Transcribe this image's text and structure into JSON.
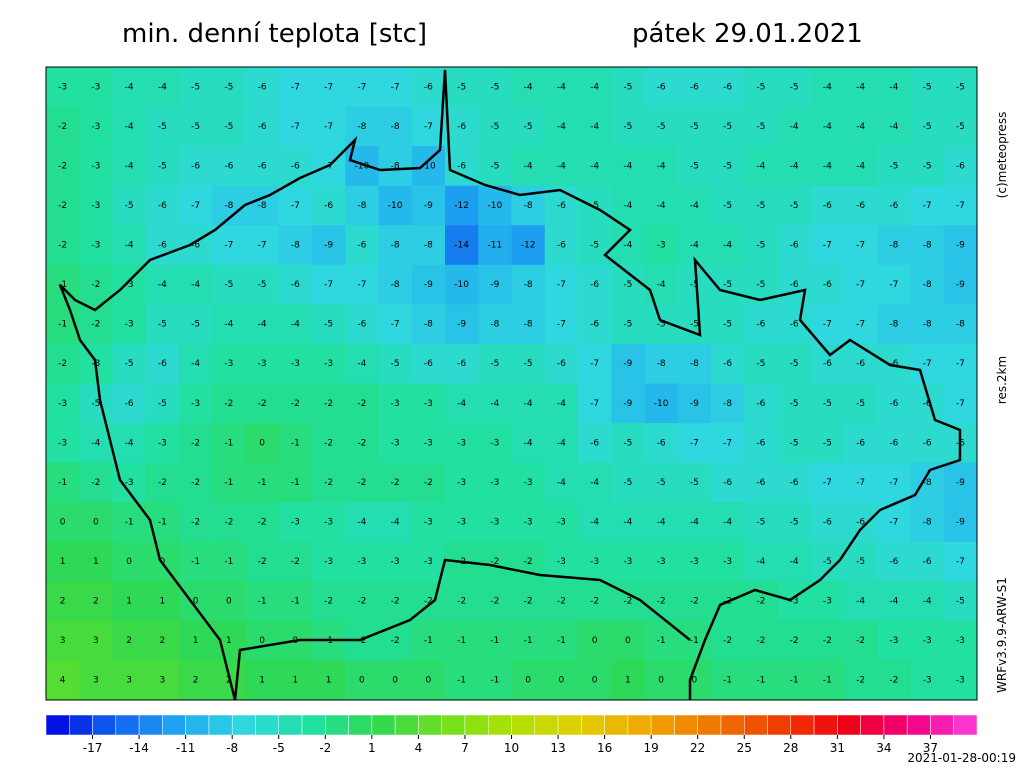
{
  "header": {
    "title": "min. denní teplota [stc]",
    "date": "pátek 29.01.2021"
  },
  "side": {
    "copyright": "(c)meteopress",
    "resolution": "res.2km",
    "model": "WRFv3.9.9-ARW-S1"
  },
  "footer": {
    "timestamp": "2021-01-28-00:19"
  },
  "grid": [
    [
      -3,
      -3,
      -4,
      -4,
      -5,
      -5,
      -6,
      -7,
      -7,
      -7,
      -7,
      -6,
      -5,
      -5,
      -4,
      -4,
      -4,
      -5,
      -6,
      -6,
      -6,
      -5,
      -5,
      -4,
      -4,
      -4,
      -5,
      -5
    ],
    [
      -2,
      -3,
      -4,
      -5,
      -5,
      -5,
      -6,
      -7,
      -7,
      -8,
      -8,
      -7,
      -6,
      -5,
      -5,
      -4,
      -4,
      -5,
      -5,
      -5,
      -5,
      -5,
      -4,
      -4,
      -4,
      -4,
      -5,
      -5
    ],
    [
      -2,
      -3,
      -4,
      -5,
      -6,
      -6,
      -6,
      -6,
      -7,
      -10,
      -8,
      -10,
      -6,
      -5,
      -4,
      -4,
      -4,
      -4,
      -4,
      -5,
      -5,
      -4,
      -4,
      -4,
      -4,
      -5,
      -5,
      -6
    ],
    [
      -2,
      -3,
      -5,
      -6,
      -7,
      -8,
      -8,
      -7,
      -6,
      -8,
      -10,
      -9,
      -12,
      -10,
      -8,
      -6,
      -5,
      -4,
      -4,
      -4,
      -5,
      -5,
      -5,
      -6,
      -6,
      -6,
      -7,
      -7
    ],
    [
      -2,
      -3,
      -4,
      -6,
      -6,
      -7,
      -7,
      -8,
      -9,
      -6,
      -8,
      -8,
      -14,
      -11,
      -12,
      -6,
      -5,
      -4,
      -3,
      -4,
      -4,
      -5,
      -6,
      -7,
      -7,
      -8,
      -8,
      -9
    ],
    [
      -1,
      -2,
      -3,
      -4,
      -4,
      -5,
      -5,
      -6,
      -7,
      -7,
      -8,
      -9,
      -10,
      -9,
      -8,
      -7,
      -6,
      -5,
      -4,
      -5,
      -5,
      -5,
      -6,
      -6,
      -7,
      -7,
      -8,
      -9
    ],
    [
      -1,
      -2,
      -3,
      -5,
      -5,
      -4,
      -4,
      -4,
      -5,
      -6,
      -7,
      -8,
      -9,
      -8,
      -8,
      -7,
      -6,
      -5,
      -5,
      -5,
      -5,
      -6,
      -6,
      -7,
      -7,
      -8,
      -8,
      -8
    ],
    [
      -2,
      -3,
      -5,
      -6,
      -4,
      -3,
      -3,
      -3,
      -3,
      -4,
      -5,
      -6,
      -6,
      -5,
      -5,
      -6,
      -7,
      -9,
      -8,
      -8,
      -6,
      -5,
      -5,
      -6,
      -6,
      -6,
      -7,
      -7
    ],
    [
      -3,
      -5,
      -6,
      -5,
      -3,
      -2,
      -2,
      -2,
      -2,
      -2,
      -3,
      -3,
      -4,
      -4,
      -4,
      -4,
      -7,
      -9,
      -10,
      -9,
      -8,
      -6,
      -5,
      -5,
      -5,
      -6,
      -6,
      -7
    ],
    [
      -3,
      -4,
      -4,
      -3,
      -2,
      -1,
      0,
      -1,
      -2,
      -2,
      -3,
      -3,
      -3,
      -3,
      -4,
      -4,
      -6,
      -5,
      -6,
      -7,
      -7,
      -6,
      -5,
      -5,
      -6,
      -6,
      -6,
      -6
    ],
    [
      -1,
      -2,
      -3,
      -2,
      -2,
      -1,
      -1,
      -1,
      -2,
      -2,
      -2,
      -2,
      -3,
      -3,
      -3,
      -4,
      -4,
      -5,
      -5,
      -5,
      -6,
      -6,
      -6,
      -7,
      -7,
      -7,
      -8,
      -9
    ],
    [
      0,
      0,
      -1,
      -1,
      -2,
      -2,
      -2,
      -3,
      -3,
      -4,
      -4,
      -3,
      -3,
      -3,
      -3,
      -3,
      -4,
      -4,
      -4,
      -4,
      -4,
      -5,
      -5,
      -6,
      -6,
      -7,
      -8,
      -9
    ],
    [
      1,
      1,
      0,
      0,
      -1,
      -1,
      -2,
      -2,
      -3,
      -3,
      -3,
      -3,
      -2,
      -2,
      -2,
      -3,
      -3,
      -3,
      -3,
      -3,
      -3,
      -4,
      -4,
      -5,
      -5,
      -6,
      -6,
      -7
    ],
    [
      2,
      2,
      1,
      1,
      0,
      0,
      -1,
      -1,
      -2,
      -2,
      -2,
      -2,
      -2,
      -2,
      -2,
      -2,
      -2,
      -2,
      -2,
      -2,
      -2,
      -2,
      -3,
      -3,
      -4,
      -4,
      -4,
      -5
    ],
    [
      3,
      3,
      2,
      2,
      1,
      1,
      0,
      0,
      -1,
      -2,
      -2,
      -1,
      -1,
      -1,
      -1,
      -1,
      0,
      0,
      -1,
      -1,
      -2,
      -2,
      -2,
      -2,
      -2,
      -3,
      -3,
      -3
    ],
    [
      4,
      3,
      3,
      3,
      2,
      2,
      1,
      1,
      1,
      0,
      0,
      0,
      -1,
      -1,
      0,
      0,
      0,
      1,
      0,
      0,
      -1,
      -1,
      -1,
      -1,
      -2,
      -2,
      -3,
      -3
    ]
  ],
  "colorbar": {
    "lim": [
      -20,
      40
    ],
    "ticks": [
      -17,
      -14,
      -11,
      -8,
      -5,
      -2,
      1,
      4,
      7,
      10,
      13,
      16,
      19,
      22,
      25,
      28,
      31,
      34,
      37
    ],
    "colors": [
      "#0000e0",
      "#1060f0",
      "#20a8f0",
      "#30d8e0",
      "#20e0a0",
      "#30d850",
      "#70e020",
      "#b0e000",
      "#e0d000",
      "#f0a800",
      "#f07800",
      "#f04000",
      "#f00010",
      "#f00080",
      "#ff40e0"
    ]
  }
}
